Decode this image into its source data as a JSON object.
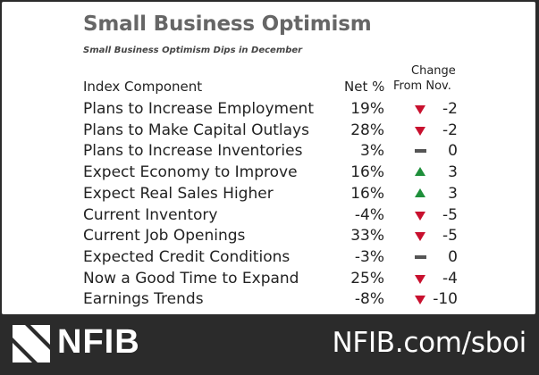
{
  "title": "Small Business Optimism",
  "subtitle": "Small Business Optimism Dips in December",
  "headers": {
    "component": "Index Component",
    "net": "Net %",
    "change_top": "Change",
    "change_bottom": "From Nov."
  },
  "rows": [
    {
      "label": "Plans to Increase Employment",
      "net": "19%",
      "direction": "down",
      "change": "-2"
    },
    {
      "label": "Plans to Make Capital Outlays",
      "net": "28%",
      "direction": "down",
      "change": "-2"
    },
    {
      "label": "Plans to Increase Inventories",
      "net": "3%",
      "direction": "flat",
      "change": "0"
    },
    {
      "label": "Expect Economy to Improve",
      "net": "16%",
      "direction": "up",
      "change": "3"
    },
    {
      "label": "Expect Real Sales Higher",
      "net": "16%",
      "direction": "up",
      "change": "3"
    },
    {
      "label": "Current Inventory",
      "net": "-4%",
      "direction": "down",
      "change": "-5"
    },
    {
      "label": "Current Job Openings",
      "net": "33%",
      "direction": "down",
      "change": "-5"
    },
    {
      "label": "Expected Credit Conditions",
      "net": "-3%",
      "direction": "flat",
      "change": "0"
    },
    {
      "label": "Now a Good Time to Expand",
      "net": "25%",
      "direction": "down",
      "change": "-4"
    },
    {
      "label": "Earnings Trends",
      "net": "-8%",
      "direction": "down",
      "change": "-10"
    }
  ],
  "colors": {
    "down": "#c8102e",
    "up": "#1e8f3a",
    "flat": "#555555"
  },
  "footer": {
    "logo_text": "NFIB",
    "url": "NFIB.com/sboi"
  }
}
